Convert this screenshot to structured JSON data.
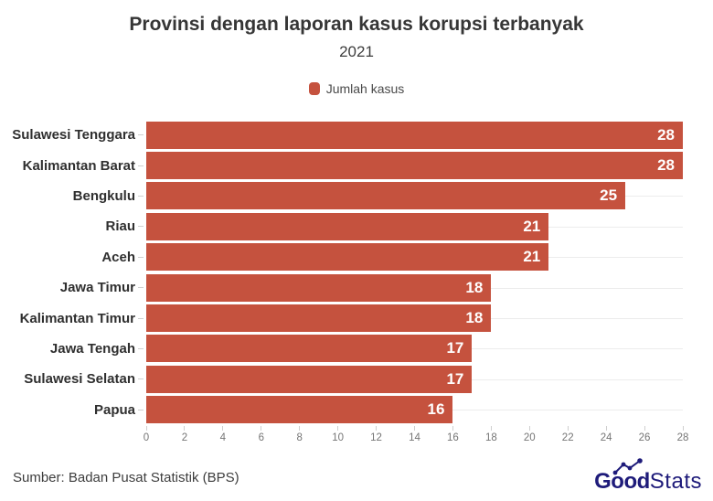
{
  "header": {
    "title": "Provinsi dengan laporan kasus korupsi terbanyak",
    "subtitle": "2021"
  },
  "legend": {
    "label": "Jumlah kasus",
    "swatch_color": "#c5523e"
  },
  "chart_data": {
    "type": "bar",
    "orientation": "horizontal",
    "title": "Provinsi dengan laporan kasus korupsi terbanyak",
    "subtitle": "2021",
    "categories": [
      "Sulawesi Tenggara",
      "Kalimantan Barat",
      "Bengkulu",
      "Riau",
      "Aceh",
      "Jawa Timur",
      "Kalimantan Timur",
      "Jawa Tengah",
      "Sulawesi Selatan",
      "Papua"
    ],
    "series": [
      {
        "name": "Jumlah kasus",
        "values": [
          28,
          28,
          25,
          21,
          21,
          18,
          18,
          17,
          17,
          16
        ]
      }
    ],
    "xlim": [
      0,
      28
    ],
    "x_ticks": [
      0,
      2,
      4,
      6,
      8,
      10,
      12,
      14,
      16,
      18,
      20,
      22,
      24,
      26,
      28
    ],
    "grid": "horizontal-category-lines",
    "legend_position": "top-center",
    "bar_color": "#c5523e",
    "value_label_color": "#ffffff",
    "value_labels_inside_bar_end": true
  },
  "footer": {
    "source": "Sumber: Badan Pusat Statistik (BPS)",
    "brand": {
      "bold_part": "Good",
      "light_part": "Stats",
      "color": "#1e1b7a"
    }
  }
}
